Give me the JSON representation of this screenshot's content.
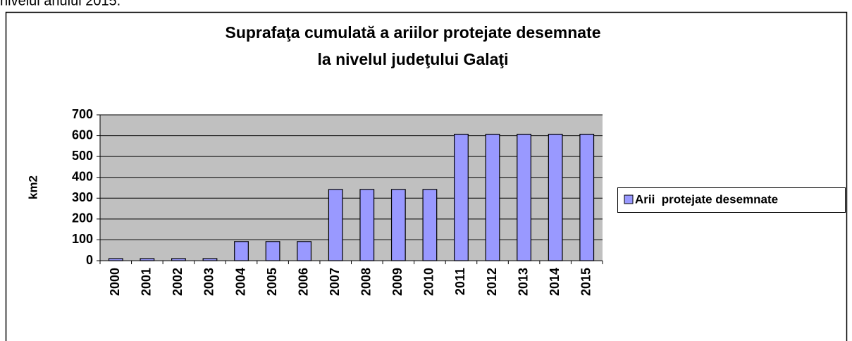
{
  "intro_text": "nivelul anului 2015.",
  "chart_data": {
    "type": "bar",
    "title": [
      "Suprafaţa cumulată a ariilor protejate desemnate",
      "la nivelul judeţului Galaţi"
    ],
    "y_label": "km2",
    "categories": [
      "2000",
      "2001",
      "2002",
      "2003",
      "2004",
      "2005",
      "2006",
      "2007",
      "2008",
      "2009",
      "2010",
      "2011",
      "2012",
      "2013",
      "2014",
      "2015"
    ],
    "series": [
      {
        "name": "Arii  protejate desemnate",
        "color": "#9999ff",
        "values": [
          10,
          10,
          10,
          10,
          92,
          92,
          92,
          342,
          342,
          342,
          342,
          607,
          607,
          607,
          607,
          607
        ]
      }
    ],
    "ylim": [
      0,
      700
    ],
    "yticks": [
      0,
      100,
      200,
      300,
      400,
      500,
      600,
      700
    ],
    "grid": true,
    "legend": "right"
  }
}
